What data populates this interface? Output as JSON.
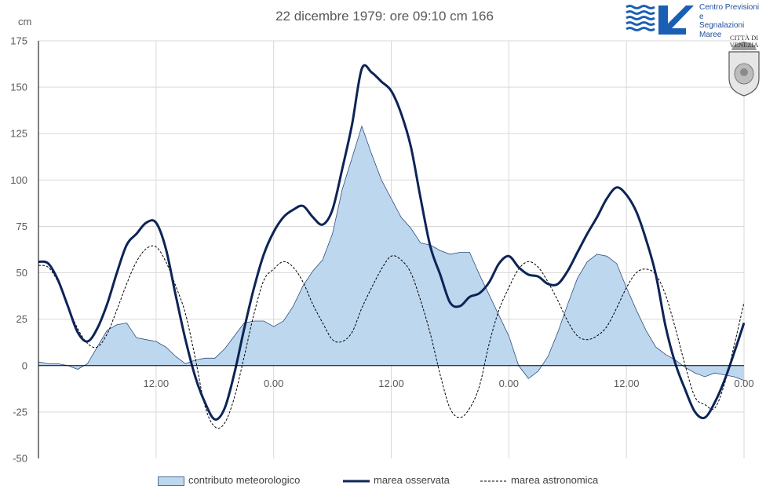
{
  "title": "22 dicembre 1979: ore 09:10 cm 166",
  "unit_label": "cm",
  "logo": {
    "org_lines": [
      "Centro Previsioni",
      "e",
      "Segnalazioni Maree"
    ],
    "city_lines": [
      "CITTÀ DI",
      "VENEZIA"
    ],
    "brand_color": "#1a5fb4"
  },
  "legend": {
    "meteo": "contributo meteorologico",
    "observed": "marea osservata",
    "astro": "marea astronomica"
  },
  "colors": {
    "observed": "#0d2456",
    "meteo_fill": "#bdd7ee",
    "meteo_line": "#2f4f7f",
    "astro": "#000000",
    "grid": "#d9d9d9"
  },
  "chart_data": {
    "type": "line",
    "y_ticks": [
      -50,
      -25,
      0,
      25,
      50,
      75,
      100,
      125,
      150,
      175
    ],
    "ylim": [
      -50,
      175
    ],
    "xlim_hours": [
      0,
      72
    ],
    "x_ticks": [
      "12.00",
      "0.00",
      "12.00",
      "0.00",
      "12.00",
      "0.00"
    ],
    "grid": true,
    "legend_position": "bottom",
    "series": [
      {
        "name": "marea osservata",
        "kind": "line",
        "points": [
          [
            0,
            56
          ],
          [
            1,
            55
          ],
          [
            2,
            46
          ],
          [
            3,
            32
          ],
          [
            4,
            18
          ],
          [
            5,
            13
          ],
          [
            6,
            20
          ],
          [
            7,
            33
          ],
          [
            8,
            50
          ],
          [
            9,
            65
          ],
          [
            10,
            71
          ],
          [
            11,
            77
          ],
          [
            12,
            77
          ],
          [
            13,
            63
          ],
          [
            14,
            38
          ],
          [
            15,
            14
          ],
          [
            16,
            -6
          ],
          [
            17,
            -20
          ],
          [
            18,
            -29
          ],
          [
            19,
            -23
          ],
          [
            20,
            -4
          ],
          [
            21,
            20
          ],
          [
            22,
            42
          ],
          [
            23,
            60
          ],
          [
            24,
            72
          ],
          [
            25,
            80
          ],
          [
            26,
            84
          ],
          [
            27,
            86
          ],
          [
            28,
            80
          ],
          [
            29,
            76
          ],
          [
            30,
            84
          ],
          [
            31,
            106
          ],
          [
            32,
            130
          ],
          [
            33,
            160
          ],
          [
            34,
            158
          ],
          [
            35,
            153
          ],
          [
            36,
            148
          ],
          [
            37,
            136
          ],
          [
            38,
            118
          ],
          [
            39,
            90
          ],
          [
            40,
            64
          ],
          [
            41,
            49
          ],
          [
            42,
            34
          ],
          [
            43,
            32
          ],
          [
            44,
            37
          ],
          [
            45,
            39
          ],
          [
            46,
            45
          ],
          [
            47,
            55
          ],
          [
            48,
            59
          ],
          [
            49,
            53
          ],
          [
            50,
            49
          ],
          [
            51,
            48
          ],
          [
            52,
            44
          ],
          [
            53,
            44
          ],
          [
            54,
            51
          ],
          [
            55,
            61
          ],
          [
            56,
            71
          ],
          [
            57,
            80
          ],
          [
            58,
            90
          ],
          [
            59,
            96
          ],
          [
            60,
            92
          ],
          [
            61,
            83
          ],
          [
            62,
            68
          ],
          [
            63,
            49
          ],
          [
            64,
            21
          ],
          [
            65,
            1
          ],
          [
            66,
            -13
          ],
          [
            67,
            -25
          ],
          [
            68,
            -28
          ],
          [
            69,
            -20
          ],
          [
            70,
            -8
          ],
          [
            71,
            7
          ],
          [
            72,
            23
          ]
        ]
      },
      {
        "name": "contributo meteorologico",
        "kind": "area",
        "points": [
          [
            0,
            2
          ],
          [
            1,
            1
          ],
          [
            2,
            1
          ],
          [
            3,
            0
          ],
          [
            4,
            -2
          ],
          [
            5,
            1
          ],
          [
            6,
            10
          ],
          [
            7,
            19
          ],
          [
            8,
            22
          ],
          [
            9,
            23
          ],
          [
            10,
            15
          ],
          [
            11,
            14
          ],
          [
            12,
            13
          ],
          [
            13,
            10
          ],
          [
            14,
            5
          ],
          [
            15,
            1
          ],
          [
            16,
            3
          ],
          [
            17,
            4
          ],
          [
            18,
            4
          ],
          [
            19,
            9
          ],
          [
            20,
            16
          ],
          [
            21,
            23
          ],
          [
            22,
            24
          ],
          [
            23,
            24
          ],
          [
            24,
            21
          ],
          [
            25,
            24
          ],
          [
            26,
            32
          ],
          [
            27,
            43
          ],
          [
            28,
            51
          ],
          [
            29,
            57
          ],
          [
            30,
            71
          ],
          [
            31,
            95
          ],
          [
            32,
            112
          ],
          [
            33,
            129
          ],
          [
            34,
            114
          ],
          [
            35,
            100
          ],
          [
            36,
            90
          ],
          [
            37,
            80
          ],
          [
            38,
            74
          ],
          [
            39,
            66
          ],
          [
            40,
            65
          ],
          [
            41,
            62
          ],
          [
            42,
            60
          ],
          [
            43,
            61
          ],
          [
            44,
            61
          ],
          [
            45,
            49
          ],
          [
            46,
            38
          ],
          [
            47,
            27
          ],
          [
            48,
            16
          ],
          [
            49,
            0
          ],
          [
            50,
            -7
          ],
          [
            51,
            -3
          ],
          [
            52,
            5
          ],
          [
            53,
            18
          ],
          [
            54,
            33
          ],
          [
            55,
            47
          ],
          [
            56,
            56
          ],
          [
            57,
            60
          ],
          [
            58,
            59
          ],
          [
            59,
            55
          ],
          [
            60,
            42
          ],
          [
            61,
            30
          ],
          [
            62,
            19
          ],
          [
            63,
            10
          ],
          [
            64,
            6
          ],
          [
            65,
            3
          ],
          [
            66,
            -1
          ],
          [
            67,
            -4
          ],
          [
            68,
            -6
          ],
          [
            69,
            -4
          ],
          [
            70,
            -5
          ],
          [
            71,
            -6
          ],
          [
            72,
            -8
          ]
        ]
      },
      {
        "name": "marea astronomica",
        "kind": "dashed",
        "points": [
          [
            0,
            54
          ],
          [
            1,
            53
          ],
          [
            2,
            45
          ],
          [
            3,
            32
          ],
          [
            4,
            20
          ],
          [
            5,
            12
          ],
          [
            6,
            10
          ],
          [
            7,
            17
          ],
          [
            8,
            30
          ],
          [
            9,
            44
          ],
          [
            10,
            56
          ],
          [
            11,
            63
          ],
          [
            12,
            64
          ],
          [
            13,
            56
          ],
          [
            14,
            43
          ],
          [
            15,
            28
          ],
          [
            16,
            4
          ],
          [
            17,
            -22
          ],
          [
            18,
            -33
          ],
          [
            19,
            -31
          ],
          [
            20,
            -17
          ],
          [
            21,
            5
          ],
          [
            22,
            28
          ],
          [
            23,
            46
          ],
          [
            24,
            52
          ],
          [
            25,
            56
          ],
          [
            26,
            53
          ],
          [
            27,
            45
          ],
          [
            28,
            33
          ],
          [
            29,
            23
          ],
          [
            30,
            14
          ],
          [
            31,
            13
          ],
          [
            32,
            18
          ],
          [
            33,
            31
          ],
          [
            34,
            42
          ],
          [
            35,
            52
          ],
          [
            36,
            59
          ],
          [
            37,
            57
          ],
          [
            38,
            50
          ],
          [
            39,
            35
          ],
          [
            40,
            17
          ],
          [
            41,
            -5
          ],
          [
            42,
            -23
          ],
          [
            43,
            -28
          ],
          [
            44,
            -23
          ],
          [
            45,
            -11
          ],
          [
            46,
            12
          ],
          [
            47,
            30
          ],
          [
            48,
            42
          ],
          [
            49,
            52
          ],
          [
            50,
            56
          ],
          [
            51,
            53
          ],
          [
            52,
            45
          ],
          [
            53,
            35
          ],
          [
            54,
            24
          ],
          [
            55,
            16
          ],
          [
            56,
            14
          ],
          [
            57,
            16
          ],
          [
            58,
            21
          ],
          [
            59,
            31
          ],
          [
            60,
            42
          ],
          [
            61,
            50
          ],
          [
            62,
            52
          ],
          [
            63,
            49
          ],
          [
            64,
            38
          ],
          [
            65,
            20
          ],
          [
            66,
            0
          ],
          [
            67,
            -17
          ],
          [
            68,
            -21
          ],
          [
            69,
            -23
          ],
          [
            70,
            -10
          ],
          [
            71,
            11
          ],
          [
            72,
            34
          ]
        ]
      }
    ]
  }
}
